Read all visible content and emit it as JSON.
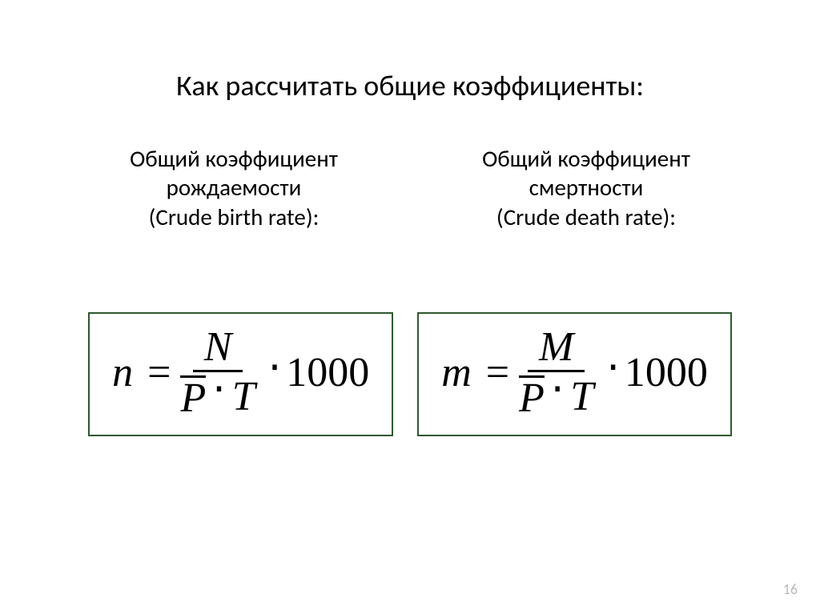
{
  "slide": {
    "title": "Как рассчитать общие коэффициенты:",
    "page_number": "16",
    "background_color": "#ffffff",
    "title_fontsize": 36,
    "sub_fontsize": 29,
    "formula_fontsize": 52,
    "formula_border_color": "#2f5930",
    "text_color": "#000000",
    "pagenum_color": "#b8b8b8"
  },
  "left": {
    "subtitle_line1": "Общий коэффициент",
    "subtitle_line2": "рождаемости",
    "subtitle_line3": "(Crude birth rate):",
    "formula": {
      "lhs": "n",
      "equals": "=",
      "numerator": "N",
      "denominator_lhs": "P",
      "cdot": "⋅",
      "denominator_rhs": "T",
      "mult": "⋅",
      "constant": "1000"
    }
  },
  "right": {
    "subtitle_line1": "Общий коэффициент",
    "subtitle_line2": "смертности",
    "subtitle_line3": "(Crude death rate):",
    "formula": {
      "lhs": "m",
      "equals": "=",
      "numerator": "M",
      "denominator_lhs": "P",
      "cdot": "⋅",
      "denominator_rhs": "T",
      "mult": "⋅",
      "constant": "1000"
    }
  }
}
